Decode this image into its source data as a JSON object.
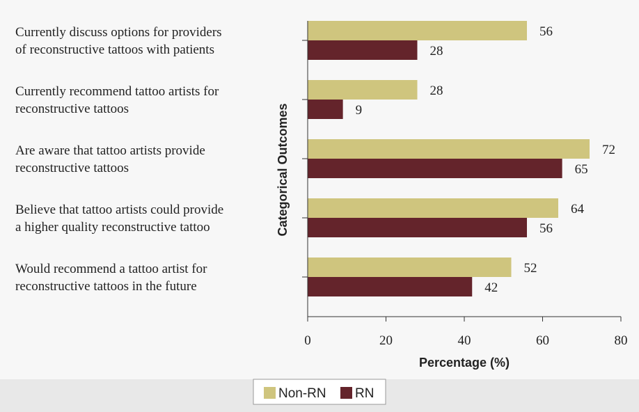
{
  "chart_data": {
    "type": "bar",
    "orientation": "horizontal",
    "categories": [
      [
        "Currently discuss options for providers",
        "of reconstructive tattoos with patients"
      ],
      [
        "Currently recommend tattoo artists for",
        "reconstructive tattoos"
      ],
      [
        "Are aware that tattoo artists provide",
        "reconstructive tattoos"
      ],
      [
        "Believe that tattoo artists could provide",
        "a higher quality reconstructive tattoo"
      ],
      [
        "Would recommend a tattoo artist for",
        "reconstructive tattoos in the future"
      ]
    ],
    "series": [
      {
        "name": "Non-RN",
        "color": "#cfc57e",
        "values": [
          56,
          28,
          72,
          64,
          52
        ]
      },
      {
        "name": "RN",
        "color": "#64242b",
        "values": [
          28,
          9,
          65,
          56,
          42
        ]
      }
    ],
    "xlabel": "Percentage (%)",
    "ylabel": "Categorical Outcomes",
    "xlim": [
      0,
      80
    ],
    "xticks": [
      0,
      20,
      40,
      60,
      80
    ],
    "grid": false,
    "legend_position": "bottom-center",
    "background": "#e8e8e8"
  }
}
